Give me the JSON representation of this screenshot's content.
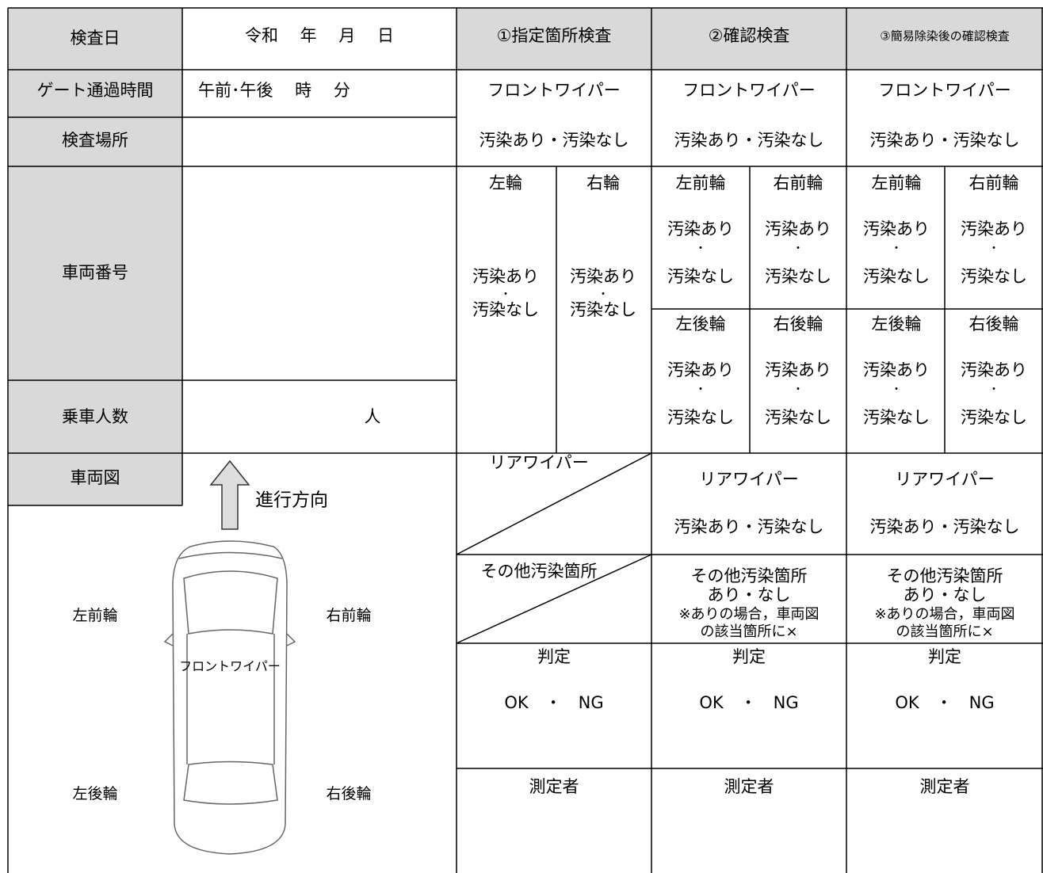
{
  "form": {
    "labels": {
      "inspection_date": "検査日",
      "gate_time": "ゲート通過時間",
      "location": "検査場所",
      "plate": "車両番号",
      "passengers": "乗車人数",
      "diagram": "車両図"
    },
    "values": {
      "date": "令和　 年　 月　 日",
      "time": "午前･午後　 時　 分",
      "passengers_unit": "人"
    },
    "columns": [
      {
        "title": "①指定箇所検査",
        "front_wiper": "フロントワイパー",
        "front_wiper_result": "汚染あり・汚染なし",
        "wheels": [
          {
            "name": "左輪",
            "result": [
              "汚染あり",
              "・",
              "汚染なし"
            ]
          },
          {
            "name": "右輪",
            "result": [
              "汚染あり",
              "・",
              "汚染なし"
            ]
          }
        ],
        "rear_wiper": "リアワイパー",
        "other": [
          "その他汚染箇所"
        ],
        "judgement": "判定",
        "judgement_result": "OK　・　NG",
        "inspector": "測定者"
      },
      {
        "title": "②確認検査",
        "front_wiper": "フロントワイパー",
        "front_wiper_result": "汚染あり・汚染なし",
        "wheels": [
          {
            "name": "左前輪",
            "result": [
              "汚染あり",
              "・",
              "汚染なし"
            ]
          },
          {
            "name": "右前輪",
            "result": [
              "汚染あり",
              "・",
              "汚染なし"
            ]
          },
          {
            "name": "左後輪",
            "result": [
              "汚染あり",
              "・",
              "汚染なし"
            ]
          },
          {
            "name": "右後輪",
            "result": [
              "汚染あり",
              "・",
              "汚染なし"
            ]
          }
        ],
        "rear_wiper": "リアワイパー",
        "rear_wiper_result": "汚染あり・汚染なし",
        "other": [
          "その他汚染箇所",
          "あり・なし",
          "※ありの場合，車両図",
          "の該当箇所に×"
        ],
        "judgement": "判定",
        "judgement_result": "OK　・　NG",
        "inspector": "測定者"
      },
      {
        "title": "③簡易除染後の確認検査",
        "front_wiper": "フロントワイパー",
        "front_wiper_result": "汚染あり・汚染なし",
        "wheels": [
          {
            "name": "左前輪",
            "result": [
              "汚染あり",
              "・",
              "汚染なし"
            ]
          },
          {
            "name": "右前輪",
            "result": [
              "汚染あり",
              "・",
              "汚染なし"
            ]
          },
          {
            "name": "左後輪",
            "result": [
              "汚染あり",
              "・",
              "汚染なし"
            ]
          },
          {
            "name": "右後輪",
            "result": [
              "汚染あり",
              "・",
              "汚染なし"
            ]
          }
        ],
        "rear_wiper": "リアワイパー",
        "rear_wiper_result": "汚染あり・汚染なし",
        "other": [
          "その他汚染箇所",
          "あり・なし",
          "※ありの場合，車両図",
          "の該当箇所に×"
        ],
        "judgement": "判定",
        "judgement_result": "OK　・　NG",
        "inspector": "測定者"
      }
    ],
    "diagram": {
      "direction": "進行方向",
      "front_left": "左前輪",
      "front_right": "右前輪",
      "front_wiper": "フロントワイパー",
      "rear_left": "左後輪",
      "rear_right": "右後輪"
    }
  }
}
